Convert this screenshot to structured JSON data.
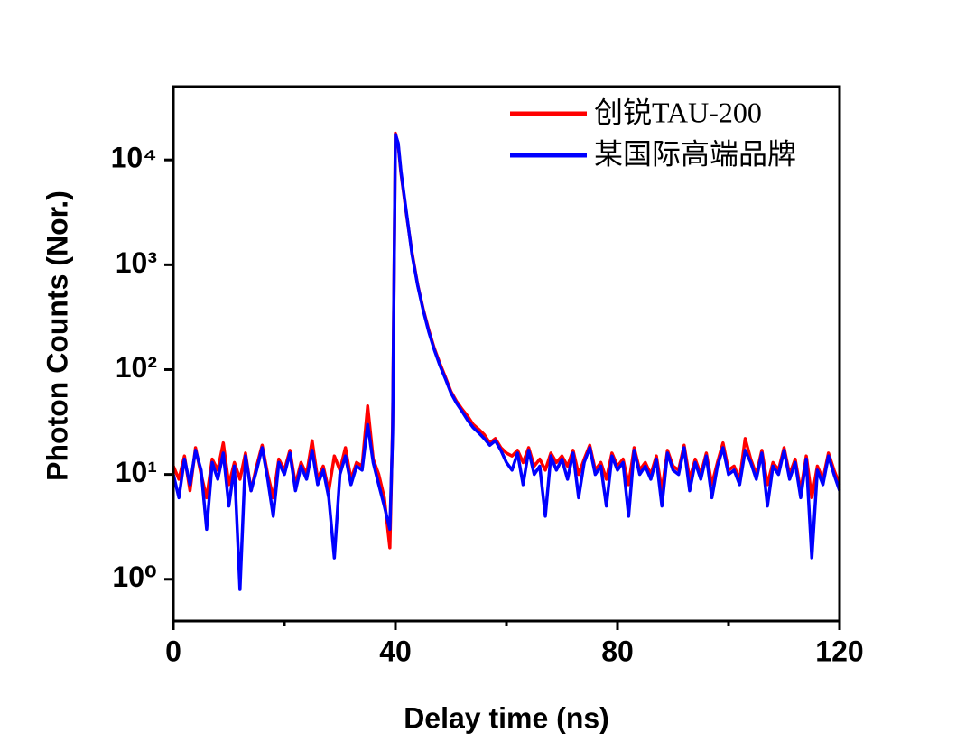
{
  "chart_data": {
    "type": "line",
    "xlabel": "Delay time (ns)",
    "ylabel": "Photon Counts (Nor.)",
    "log_y": true,
    "legend": "upper right",
    "x": [
      0,
      1,
      2,
      3,
      4,
      5,
      6,
      7,
      8,
      9,
      10,
      11,
      12,
      13,
      14,
      15,
      16,
      17,
      18,
      19,
      20,
      21,
      22,
      23,
      24,
      25,
      26,
      27,
      28,
      29,
      30,
      31,
      32,
      33,
      34,
      35,
      36,
      37,
      38,
      39,
      39.5,
      40,
      40.5,
      41,
      42,
      43,
      44,
      45,
      46,
      47,
      48,
      49,
      50,
      51,
      52,
      53,
      54,
      55,
      56,
      57,
      58,
      59,
      60,
      61,
      62,
      63,
      64,
      65,
      66,
      67,
      68,
      69,
      70,
      71,
      72,
      73,
      74,
      75,
      76,
      77,
      78,
      79,
      80,
      81,
      82,
      83,
      84,
      85,
      86,
      87,
      88,
      89,
      90,
      91,
      92,
      93,
      94,
      95,
      96,
      97,
      98,
      99,
      100,
      101,
      102,
      103,
      104,
      105,
      106,
      107,
      108,
      109,
      110,
      111,
      112,
      113,
      114,
      115,
      116,
      117,
      118,
      119,
      120
    ],
    "series": [
      {
        "name": "创锐TAU-200",
        "color": "#ff0000",
        "values": [
          12,
          9,
          15,
          7,
          18,
          10,
          6,
          14,
          11,
          20,
          8,
          13,
          9,
          16,
          7,
          12,
          19,
          10,
          6,
          14,
          11,
          17,
          8,
          13,
          10,
          21,
          9,
          12,
          7,
          15,
          11,
          18,
          9,
          13,
          12,
          45,
          14,
          10,
          6,
          2,
          30,
          18000,
          14000,
          7500,
          3000,
          1300,
          650,
          380,
          240,
          160,
          115,
          85,
          62,
          50,
          42,
          36,
          30,
          27,
          24,
          20,
          22,
          18,
          16,
          15,
          17,
          13,
          18,
          12,
          14,
          11,
          16,
          13,
          15,
          12,
          17,
          10,
          14,
          19,
          11,
          13,
          9,
          16,
          12,
          14,
          8,
          18,
          11,
          13,
          10,
          15,
          7,
          17,
          12,
          11,
          19,
          9,
          14,
          10,
          16,
          8,
          13,
          20,
          11,
          12,
          9,
          22,
          14,
          10,
          17,
          8,
          13,
          11,
          18,
          10,
          14,
          7,
          15,
          6,
          12,
          9,
          16,
          11,
          8
        ]
      },
      {
        "name": "某国际高端品牌",
        "color": "#0000ff",
        "values": [
          10,
          6,
          14,
          8,
          17,
          11,
          3,
          13,
          9,
          16,
          5,
          12,
          0.8,
          15,
          7,
          11,
          18,
          9,
          4,
          13,
          10,
          16,
          7,
          12,
          9,
          17,
          8,
          11,
          6,
          1.6,
          10,
          15,
          8,
          12,
          11,
          30,
          13,
          8,
          5,
          3,
          25,
          17500,
          14500,
          7800,
          3100,
          1250,
          640,
          370,
          230,
          155,
          110,
          82,
          60,
          48,
          40,
          33,
          28,
          25,
          22,
          19,
          21,
          17,
          13,
          11,
          16,
          8,
          17,
          10,
          12,
          4,
          15,
          11,
          14,
          9,
          16,
          6,
          13,
          18,
          10,
          12,
          5,
          15,
          11,
          13,
          4,
          17,
          10,
          12,
          9,
          14,
          5,
          16,
          11,
          10,
          18,
          7,
          13,
          9,
          15,
          6,
          12,
          18,
          10,
          11,
          8,
          17,
          13,
          9,
          16,
          5,
          12,
          10,
          17,
          9,
          13,
          6,
          14,
          1.6,
          11,
          8,
          15,
          10,
          7
        ]
      }
    ],
    "xlim": [
      0,
      120
    ],
    "xticks": [
      0,
      40,
      80,
      120
    ],
    "xminorticks": [
      20,
      60,
      100
    ],
    "ylim": [
      0.4,
      50000
    ],
    "yticks": [
      {
        "value": 1,
        "label": "10⁰"
      },
      {
        "value": 10,
        "label": "10¹"
      },
      {
        "value": 100,
        "label": "10²"
      },
      {
        "value": 1000,
        "label": "10³"
      },
      {
        "value": 10000,
        "label": "10⁴"
      }
    ]
  }
}
